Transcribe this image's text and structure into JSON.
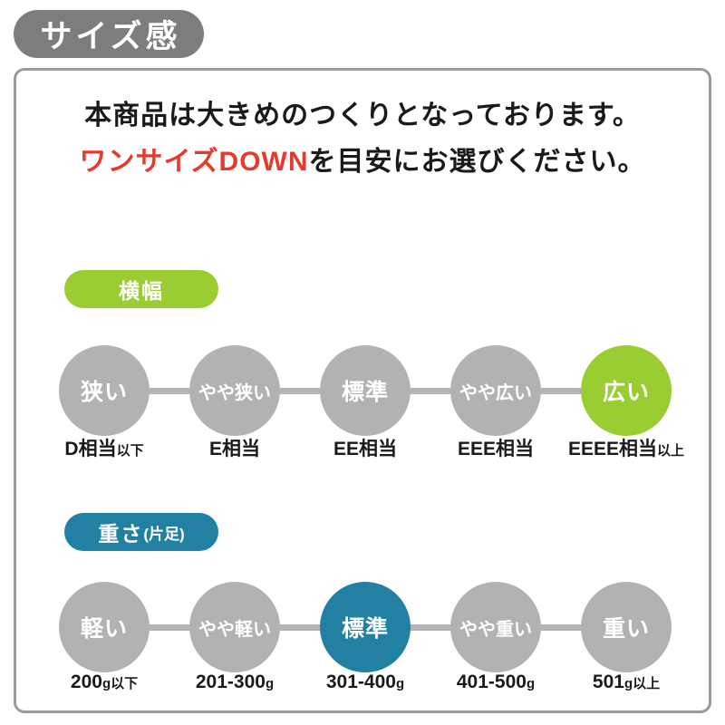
{
  "badge_label": "サイズ感",
  "intro": {
    "line1": "本商品は大きめのつくりとなっております。",
    "line2_highlight": "ワンサイズDOWN",
    "line2_rest": "を目安にお選びください。"
  },
  "colors": {
    "badge_gray": "#7d7d7d",
    "panel_border_gray": "#9a9a9a",
    "circle_gray": "#b2b2b2",
    "connector_gray": "#b5b5b5",
    "accent_green": "#9acd32",
    "accent_teal": "#2280a2",
    "highlight_red": "#e8392d"
  },
  "scales": [
    {
      "id": "width",
      "label": "横幅",
      "label_suffix": "",
      "accent": "#9acd32",
      "active_index": 4,
      "steps": [
        {
          "circle": "狭い",
          "value": "D相当",
          "suffix": "以下"
        },
        {
          "circle": "やや狭い",
          "value": "E相当",
          "suffix": ""
        },
        {
          "circle": "標準",
          "value": "EE相当",
          "suffix": ""
        },
        {
          "circle": "やや広い",
          "value": "EEE相当",
          "suffix": ""
        },
        {
          "circle": "広い",
          "value": "EEEE相当",
          "suffix": "以上"
        }
      ]
    },
    {
      "id": "weight",
      "label": "重さ",
      "label_suffix": "(片足)",
      "accent": "#2280a2",
      "active_index": 2,
      "steps": [
        {
          "circle": "軽い",
          "value": "200",
          "suffix": "g以下"
        },
        {
          "circle": "やや軽い",
          "value": "201-300",
          "suffix": "g"
        },
        {
          "circle": "標準",
          "value": "301-400",
          "suffix": "g"
        },
        {
          "circle": "やや重い",
          "value": "401-500",
          "suffix": "g"
        },
        {
          "circle": "重い",
          "value": "501",
          "suffix": "g以上"
        }
      ]
    }
  ]
}
